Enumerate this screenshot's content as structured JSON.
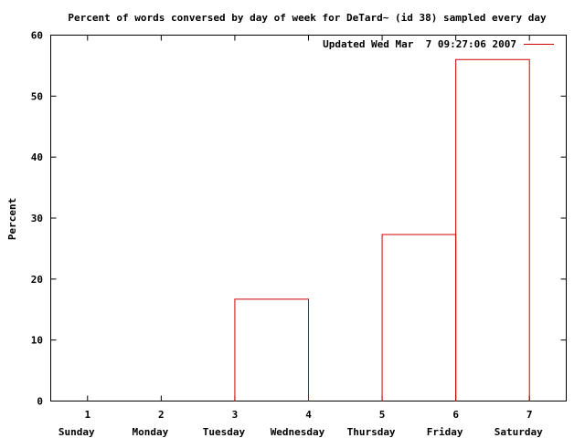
{
  "chart_data": {
    "type": "bar",
    "title": "Percent of words conversed by day of week for DeTard~ (id 38) sampled every day",
    "xlabel": "",
    "ylabel": "Percent",
    "categories": [
      "1",
      "2",
      "3",
      "4",
      "5",
      "6",
      "7"
    ],
    "category_names": [
      "Sunday",
      "Monday",
      "Tuesday",
      "Wednesday",
      "Thursday",
      "Friday",
      "Saturday"
    ],
    "values": [
      0,
      0,
      16.7,
      0,
      27.3,
      56.0,
      0
    ],
    "ylim": [
      0,
      60
    ],
    "yticks": [
      0,
      10,
      20,
      30,
      40,
      50,
      60
    ],
    "series": [
      {
        "name": "Updated Wed Mar  7 09:27:06 2007",
        "values": [
          0,
          0,
          16.7,
          0,
          27.3,
          56.0,
          0
        ]
      }
    ],
    "legend_position": "top-right",
    "grid": false,
    "bar_color": "#cc0000",
    "axis_color": "#000000"
  }
}
